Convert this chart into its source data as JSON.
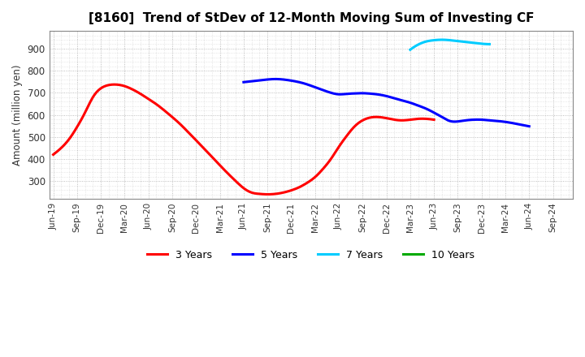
{
  "title": "[8160]  Trend of StDev of 12-Month Moving Sum of Investing CF",
  "ylabel": "Amount (million yen)",
  "ylim": [
    220,
    980
  ],
  "yticks": [
    300,
    400,
    500,
    600,
    700,
    800,
    900
  ],
  "background_color": "#ffffff",
  "grid_color": "#999999",
  "series": [
    {
      "name": "3 Years",
      "color": "#ff0000",
      "points": [
        [
          0,
          420
        ],
        [
          1,
          450
        ],
        [
          2,
          490
        ],
        [
          3,
          545
        ],
        [
          4,
          610
        ],
        [
          5,
          680
        ],
        [
          6,
          720
        ],
        [
          7,
          735
        ],
        [
          8,
          737
        ],
        [
          9,
          730
        ],
        [
          10,
          715
        ],
        [
          11,
          695
        ],
        [
          12,
          672
        ],
        [
          13,
          648
        ],
        [
          14,
          620
        ],
        [
          15,
          590
        ],
        [
          16,
          558
        ],
        [
          17,
          522
        ],
        [
          18,
          485
        ],
        [
          19,
          447
        ],
        [
          20,
          410
        ],
        [
          21,
          372
        ],
        [
          22,
          335
        ],
        [
          23,
          300
        ],
        [
          24,
          268
        ],
        [
          25,
          248
        ],
        [
          26,
          242
        ],
        [
          27,
          240
        ],
        [
          28,
          242
        ],
        [
          29,
          248
        ],
        [
          30,
          258
        ],
        [
          31,
          272
        ],
        [
          32,
          292
        ],
        [
          33,
          318
        ],
        [
          34,
          355
        ],
        [
          35,
          400
        ],
        [
          36,
          455
        ],
        [
          37,
          505
        ],
        [
          38,
          548
        ],
        [
          39,
          575
        ],
        [
          40,
          588
        ],
        [
          41,
          590
        ],
        [
          42,
          585
        ],
        [
          43,
          578
        ],
        [
          44,
          575
        ],
        [
          45,
          578
        ],
        [
          46,
          582
        ],
        [
          47,
          582
        ],
        [
          48,
          578
        ]
      ]
    },
    {
      "name": "5 Years",
      "color": "#0000ff",
      "points": [
        [
          24,
          748
        ],
        [
          25,
          752
        ],
        [
          26,
          756
        ],
        [
          27,
          760
        ],
        [
          28,
          762
        ],
        [
          29,
          760
        ],
        [
          30,
          755
        ],
        [
          31,
          748
        ],
        [
          32,
          738
        ],
        [
          33,
          725
        ],
        [
          34,
          712
        ],
        [
          35,
          700
        ],
        [
          36,
          693
        ],
        [
          37,
          695
        ],
        [
          38,
          697
        ],
        [
          39,
          698
        ],
        [
          40,
          696
        ],
        [
          41,
          692
        ],
        [
          42,
          685
        ],
        [
          43,
          675
        ],
        [
          44,
          665
        ],
        [
          45,
          655
        ],
        [
          46,
          642
        ],
        [
          47,
          628
        ],
        [
          48,
          610
        ],
        [
          49,
          590
        ],
        [
          50,
          572
        ],
        [
          51,
          570
        ],
        [
          52,
          575
        ],
        [
          53,
          578
        ],
        [
          54,
          578
        ],
        [
          55,
          575
        ],
        [
          56,
          572
        ],
        [
          57,
          568
        ],
        [
          58,
          562
        ],
        [
          59,
          555
        ],
        [
          60,
          548
        ]
      ]
    },
    {
      "name": "7 Years",
      "color": "#00ccff",
      "points": [
        [
          45,
          895
        ],
        [
          46,
          918
        ],
        [
          47,
          932
        ],
        [
          48,
          938
        ],
        [
          49,
          940
        ],
        [
          50,
          938
        ],
        [
          51,
          934
        ],
        [
          52,
          930
        ],
        [
          53,
          926
        ],
        [
          54,
          922
        ],
        [
          55,
          920
        ]
      ]
    },
    {
      "name": "10 Years",
      "color": "#00aa00",
      "points": []
    }
  ],
  "x_labels": [
    "Jun-19",
    "Sep-19",
    "Dec-19",
    "Mar-20",
    "Jun-20",
    "Sep-20",
    "Dec-20",
    "Mar-21",
    "Jun-21",
    "Sep-21",
    "Dec-21",
    "Mar-22",
    "Jun-22",
    "Sep-22",
    "Dec-22",
    "Mar-23",
    "Jun-23",
    "Sep-23",
    "Dec-23",
    "Mar-24",
    "Jun-24",
    "Sep-24"
  ],
  "x_label_indices": [
    0,
    3,
    6,
    9,
    12,
    15,
    18,
    21,
    24,
    27,
    30,
    33,
    36,
    39,
    42,
    45,
    48,
    51,
    54,
    57,
    60,
    63
  ],
  "total_points": 66,
  "legend_entries": [
    {
      "name": "3 Years",
      "color": "#ff0000"
    },
    {
      "name": "5 Years",
      "color": "#0000ff"
    },
    {
      "name": "7 Years",
      "color": "#00ccff"
    },
    {
      "name": "10 Years",
      "color": "#00aa00"
    }
  ]
}
